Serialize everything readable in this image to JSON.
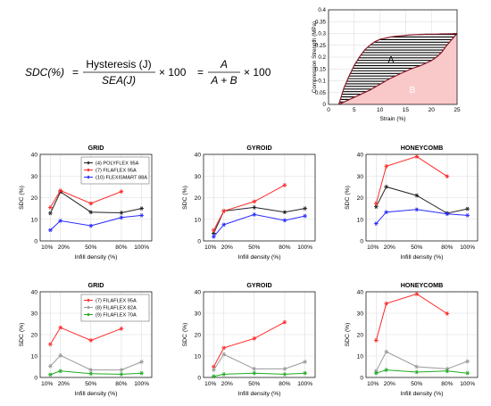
{
  "formula": {
    "lhs": "SDC(%)",
    "num1": "Hysteresis (J)",
    "den1": "SEA(J)",
    "mult1": "× 100",
    "num2": "A",
    "den2": "A + B",
    "mult2": "× 100"
  },
  "chart_data": [
    {
      "type": "area",
      "panel": "inset",
      "title": "",
      "xlabel": "Strain (%)",
      "ylabel": "Compression Strength (MPa)",
      "xlim": [
        0,
        25
      ],
      "ylim": [
        0,
        0.4
      ],
      "xticks": [
        0,
        5,
        10,
        15,
        20,
        25
      ],
      "yticks": [
        0,
        0.05,
        0.1,
        0.15,
        0.2,
        0.25,
        0.3,
        0.35,
        0.4
      ],
      "grid": true,
      "region_labels": [
        "A",
        "B"
      ],
      "loading_curve": {
        "x": [
          2,
          3,
          4,
          5,
          6,
          7,
          8,
          9,
          10,
          11,
          12,
          13,
          14,
          15,
          16,
          17,
          18,
          19,
          20,
          21,
          22,
          23,
          24,
          25
        ],
        "y": [
          0.0,
          0.07,
          0.12,
          0.165,
          0.2,
          0.23,
          0.25,
          0.265,
          0.275,
          0.28,
          0.285,
          0.288,
          0.29,
          0.292,
          0.294,
          0.295,
          0.296,
          0.297,
          0.297,
          0.297,
          0.298,
          0.298,
          0.299,
          0.3
        ]
      },
      "unloading_curve": {
        "x": [
          2,
          4,
          6,
          8,
          10,
          12,
          14,
          16,
          18,
          20,
          21,
          22,
          23,
          24,
          25
        ],
        "y": [
          0.0,
          0.02,
          0.04,
          0.06,
          0.085,
          0.11,
          0.13,
          0.15,
          0.165,
          0.185,
          0.2,
          0.22,
          0.25,
          0.275,
          0.3
        ]
      },
      "colors": {
        "curve": "#8b1a2b",
        "area_a_hatch": "#000000",
        "area_b_fill": "#f9c9c9"
      }
    },
    {
      "type": "line",
      "panel": "top-left",
      "title": "GRID",
      "xlabel": "Infill density (%)",
      "ylabel": "SDC (%)",
      "x_categories": [
        "10%",
        "20%",
        "50%",
        "80%",
        "100%"
      ],
      "x": [
        10,
        20,
        50,
        80,
        100
      ],
      "xlim": [
        0,
        110
      ],
      "ylim": [
        0,
        40
      ],
      "yticks": [
        0,
        10,
        20,
        30,
        40
      ],
      "grid": true,
      "legend_position": "top-right",
      "series": [
        {
          "name": "(4) POLYFLEX 95A",
          "color": "#222222",
          "marker": "*",
          "x": [
            10,
            20,
            50,
            80,
            100
          ],
          "values": [
            12.8,
            22.7,
            13.3,
            13.0,
            15.0
          ]
        },
        {
          "name": "(7) FILAFLEX 95A",
          "color": "#ff2a2a",
          "marker": "*",
          "x": [
            10,
            20,
            50,
            80
          ],
          "values": [
            15.5,
            23.3,
            17.3,
            22.8
          ]
        },
        {
          "name": "(10) FLEXISMART 88A",
          "color": "#2a2aff",
          "marker": "*",
          "x": [
            10,
            20,
            50,
            80,
            100
          ],
          "values": [
            5.0,
            9.3,
            7.0,
            10.8,
            11.8
          ]
        }
      ]
    },
    {
      "type": "line",
      "panel": "top-middle",
      "title": "GYROID",
      "xlabel": "Infill density (%)",
      "ylabel": "SDC (%)",
      "x_categories": [
        "10%",
        "20%",
        "50%",
        "80%",
        "100%"
      ],
      "x": [
        10,
        20,
        50,
        80,
        100
      ],
      "xlim": [
        0,
        110
      ],
      "ylim": [
        0,
        40
      ],
      "yticks": [
        0,
        10,
        20,
        30,
        40
      ],
      "grid": true,
      "series": [
        {
          "color": "#222222",
          "marker": "*",
          "x": [
            10,
            20,
            50,
            80,
            100
          ],
          "values": [
            3.5,
            13.8,
            15.5,
            13.3,
            15.0
          ]
        },
        {
          "color": "#ff2a2a",
          "marker": "*",
          "x": [
            10,
            20,
            50,
            80
          ],
          "values": [
            5.0,
            13.8,
            18.2,
            25.8
          ]
        },
        {
          "color": "#2a2aff",
          "marker": "*",
          "x": [
            10,
            20,
            50,
            80,
            100
          ],
          "values": [
            2.0,
            7.5,
            12.2,
            9.5,
            11.5
          ]
        }
      ]
    },
    {
      "type": "line",
      "panel": "top-right",
      "title": "HONEYCOMB",
      "xlabel": "Infill density (%)",
      "ylabel": "SDC (%)",
      "x_categories": [
        "10%",
        "20%",
        "50%",
        "80%",
        "100%"
      ],
      "x": [
        10,
        20,
        50,
        80,
        100
      ],
      "xlim": [
        0,
        110
      ],
      "ylim": [
        0,
        40
      ],
      "yticks": [
        0,
        10,
        20,
        30,
        40
      ],
      "grid": true,
      "series": [
        {
          "color": "#222222",
          "marker": "*",
          "x": [
            10,
            20,
            50,
            80,
            100
          ],
          "values": [
            15.8,
            25.0,
            21.0,
            12.8,
            14.8
          ]
        },
        {
          "color": "#ff2a2a",
          "marker": "*",
          "x": [
            10,
            20,
            50,
            80
          ],
          "values": [
            17.3,
            34.5,
            39.0,
            29.8
          ]
        },
        {
          "color": "#2a2aff",
          "marker": "*",
          "x": [
            10,
            20,
            50,
            80,
            100
          ],
          "values": [
            8.0,
            13.3,
            14.5,
            12.5,
            11.8
          ]
        }
      ]
    },
    {
      "type": "line",
      "panel": "bottom-left",
      "title": "GRID",
      "xlabel": "Infill density (%)",
      "ylabel": "SDC (%)",
      "x_categories": [
        "10%",
        "20%",
        "50%",
        "80%",
        "100%"
      ],
      "x": [
        10,
        20,
        50,
        80,
        100
      ],
      "xlim": [
        0,
        110
      ],
      "ylim": [
        0,
        40
      ],
      "yticks": [
        0,
        10,
        20,
        30,
        40
      ],
      "grid": true,
      "legend_position": "top-right",
      "series": [
        {
          "name": "(7) FILAFLEX 95A",
          "color": "#ff2a2a",
          "marker": "*",
          "x": [
            10,
            20,
            50,
            80
          ],
          "values": [
            15.5,
            23.3,
            17.3,
            22.8
          ]
        },
        {
          "name": "(8) FILAFLEX 82A",
          "color": "#999999",
          "marker": "*",
          "x": [
            10,
            20,
            50,
            80,
            100
          ],
          "values": [
            5.3,
            10.3,
            3.5,
            3.5,
            7.3
          ]
        },
        {
          "name": "(9) FILAFLEX 70A",
          "color": "#22aa22",
          "marker": "*",
          "x": [
            10,
            20,
            50,
            80,
            100
          ],
          "values": [
            1.3,
            3.0,
            1.8,
            1.5,
            2.0
          ]
        }
      ]
    },
    {
      "type": "line",
      "panel": "bottom-middle",
      "title": "GYROID",
      "xlabel": "Infill density (%)",
      "ylabel": "SDC (%)",
      "x_categories": [
        "10%",
        "20%",
        "50%",
        "80%",
        "100%"
      ],
      "x": [
        10,
        20,
        50,
        80,
        100
      ],
      "xlim": [
        0,
        110
      ],
      "ylim": [
        0,
        40
      ],
      "yticks": [
        0,
        10,
        20,
        30,
        40
      ],
      "grid": true,
      "series": [
        {
          "color": "#ff2a2a",
          "marker": "*",
          "x": [
            10,
            20,
            50,
            80
          ],
          "values": [
            5.0,
            13.8,
            18.2,
            25.8
          ]
        },
        {
          "color": "#999999",
          "marker": "*",
          "x": [
            10,
            20,
            50,
            80,
            100
          ],
          "values": [
            3.5,
            10.8,
            4.0,
            4.0,
            7.3
          ]
        },
        {
          "color": "#22aa22",
          "marker": "*",
          "x": [
            10,
            20,
            50,
            80,
            100
          ],
          "values": [
            0.5,
            1.5,
            2.0,
            1.5,
            2.0
          ]
        }
      ]
    },
    {
      "type": "line",
      "panel": "bottom-right",
      "title": "HONEYCOMB",
      "xlabel": "Infill density (%)",
      "ylabel": "SDC (%)",
      "x_categories": [
        "10%",
        "20%",
        "50%",
        "80%",
        "100%"
      ],
      "x": [
        10,
        20,
        50,
        80,
        100
      ],
      "xlim": [
        0,
        110
      ],
      "ylim": [
        0,
        40
      ],
      "yticks": [
        0,
        10,
        20,
        30,
        40
      ],
      "grid": true,
      "series": [
        {
          "color": "#ff2a2a",
          "marker": "*",
          "x": [
            10,
            20,
            50,
            80
          ],
          "values": [
            17.3,
            34.5,
            39.0,
            29.8
          ]
        },
        {
          "color": "#999999",
          "marker": "*",
          "x": [
            10,
            20,
            50,
            80,
            100
          ],
          "values": [
            3.0,
            12.0,
            5.0,
            4.0,
            7.5
          ]
        },
        {
          "color": "#22aa22",
          "marker": "*",
          "x": [
            10,
            20,
            50,
            80,
            100
          ],
          "values": [
            2.0,
            3.5,
            2.5,
            3.0,
            2.0
          ]
        }
      ]
    }
  ]
}
